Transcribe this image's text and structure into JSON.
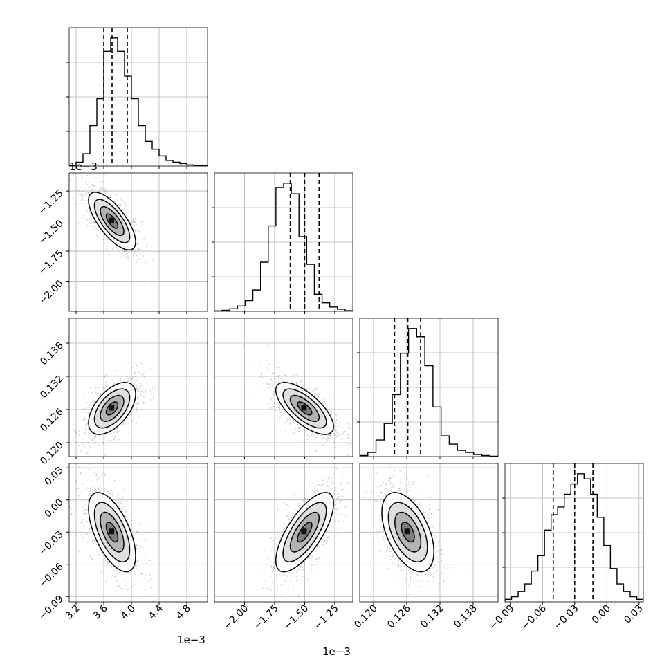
{
  "chart_data": {
    "type": "corner",
    "params": [
      {
        "ticks": [
          3.2,
          3.6,
          4.0,
          4.4,
          4.8
        ],
        "tick_labels": [
          "3.2",
          "3.6",
          "4.0",
          "4.4",
          "4.8"
        ],
        "range": [
          3.1,
          5.1
        ],
        "offset_label": "1e−3"
      },
      {
        "ticks": [
          -2.0,
          -1.75,
          -1.5,
          -1.25
        ],
        "tick_labels": [
          "−2.00",
          "−1.75",
          "−1.50",
          "−1.25"
        ],
        "range": [
          -2.25,
          -1.1
        ],
        "offset_label": "1e−3"
      },
      {
        "ticks": [
          0.12,
          0.126,
          0.132,
          0.138
        ],
        "tick_labels": [
          "0.120",
          "0.126",
          "0.132",
          "0.138"
        ],
        "range": [
          0.1175,
          0.1425
        ],
        "offset_label": ""
      },
      {
        "ticks": [
          -0.09,
          -0.06,
          -0.03,
          0.0,
          0.03
        ],
        "tick_labels": [
          "−0.09",
          "−0.06",
          "−0.03",
          "0.00",
          "0.03"
        ],
        "range": [
          -0.095,
          0.034
        ],
        "offset_label": ""
      }
    ],
    "quantiles": [
      [
        3.6,
        3.72,
        3.94
      ],
      [
        -1.62,
        -1.5,
        -1.38
      ],
      [
        0.1238,
        0.1262,
        0.1285
      ],
      [
        -0.05,
        -0.03,
        -0.013
      ]
    ],
    "histograms": [
      [
        0.3,
        1.7,
        5.5,
        18,
        30,
        51,
        57,
        51,
        40,
        30,
        18,
        11,
        7.5,
        4.5,
        2.5,
        1.7,
        1.1,
        0.5,
        0.2,
        0.1
      ],
      [
        0.2,
        0.5,
        1.2,
        2.5,
        5,
        10,
        23,
        40,
        58,
        60,
        55,
        35,
        22,
        8,
        4,
        2,
        1,
        0.3
      ],
      [
        0.5,
        2,
        8,
        16,
        30,
        50,
        62,
        58,
        44,
        24,
        10,
        6,
        3,
        2,
        1,
        0.5,
        0.2
      ],
      [
        1,
        2,
        4,
        7,
        12,
        18,
        28,
        34,
        37,
        42,
        46,
        50,
        48,
        42,
        33,
        22,
        13,
        7,
        4,
        2,
        1
      ]
    ],
    "correlations": [
      [
        1,
        -0.72,
        0.55,
        -0.6
      ],
      [
        -0.72,
        1,
        -0.7,
        0.72
      ],
      [
        0.55,
        -0.7,
        1,
        -0.5
      ],
      [
        -0.6,
        0.72,
        -0.5,
        1
      ]
    ],
    "contour_levels": [
      0.5,
      1.0,
      1.5,
      2.0
    ],
    "colors": {
      "hist": "#000000",
      "grid": "#b0b0b0",
      "points": "#000000",
      "contour": "#000000"
    },
    "grid": true
  }
}
